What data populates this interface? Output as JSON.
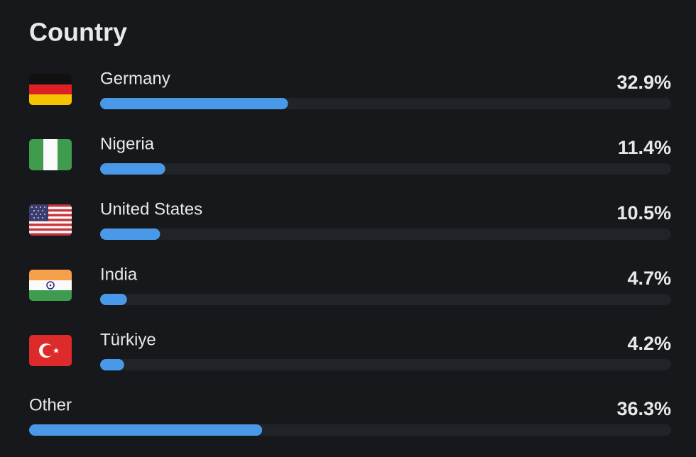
{
  "chart_data": {
    "type": "bar",
    "orientation": "horizontal",
    "title": "Country",
    "categories": [
      "Germany",
      "Nigeria",
      "United States",
      "India",
      "Türkiye",
      "Other"
    ],
    "values": [
      32.9,
      11.4,
      10.5,
      4.7,
      4.2,
      36.3
    ],
    "value_labels": [
      "32.9%",
      "11.4%",
      "10.5%",
      "4.7%",
      "4.2%",
      "36.3%"
    ],
    "xlim": [
      0,
      100
    ],
    "color": "#4a99e9"
  }
}
